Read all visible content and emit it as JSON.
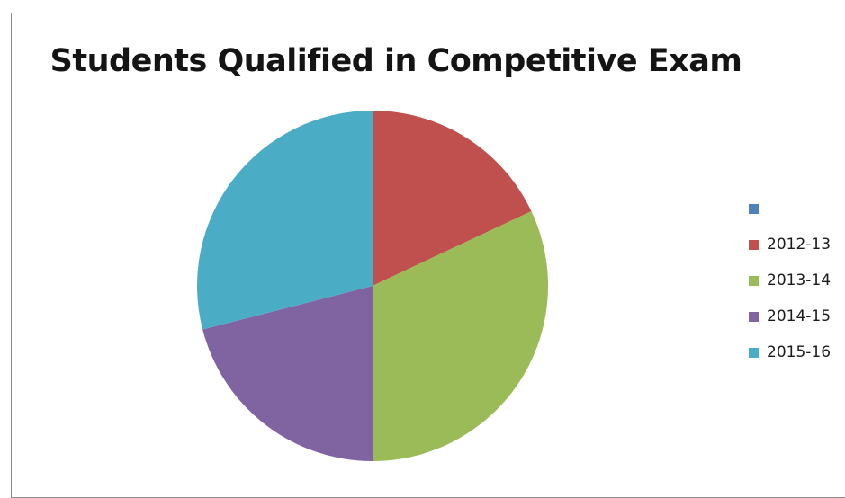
{
  "chart_data": {
    "type": "pie",
    "title": "Students Qualified in Competitive Exam",
    "categories": [
      "",
      "2012-13",
      "2013-14",
      "2014-15",
      "2015-16"
    ],
    "values": [
      0,
      18,
      32,
      21,
      29
    ],
    "colors": [
      "#4f81bd",
      "#c0504d",
      "#9bbb59",
      "#8064a2",
      "#4bacc6"
    ],
    "legend_position": "right"
  }
}
